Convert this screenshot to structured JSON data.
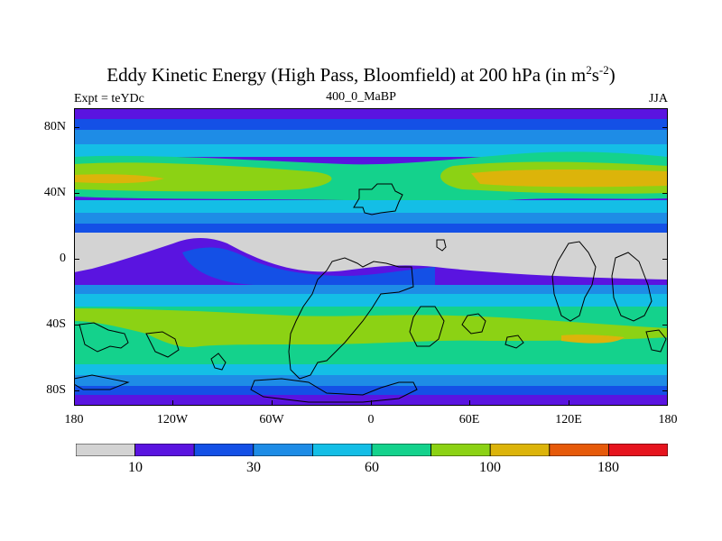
{
  "header": {
    "title_main": "Eddy Kinetic Energy (High Pass, Bloomfield) at 200 hPa (in m",
    "title_sup1": "2",
    "title_mid": "s",
    "title_sup2": "-2",
    "title_end": ")",
    "left_label": "Expt = teYDc",
    "center_label": "400_0_MaBP",
    "right_label": "JJA"
  },
  "axes": {
    "lat_labels": [
      "80N",
      "40N",
      "0",
      "40S",
      "80S"
    ],
    "lon_labels": [
      "180",
      "120W",
      "60W",
      "0",
      "60E",
      "120E",
      "180"
    ]
  },
  "colorbar": {
    "colors": [
      "#d3d3d3",
      "#5a14e0",
      "#1450e6",
      "#1e8ce6",
      "#14bee6",
      "#14d28c",
      "#8cd214",
      "#dcb40a",
      "#e65a0a",
      "#e6141e"
    ],
    "labels": [
      "10",
      "30",
      "60",
      "100",
      "180"
    ]
  }
}
